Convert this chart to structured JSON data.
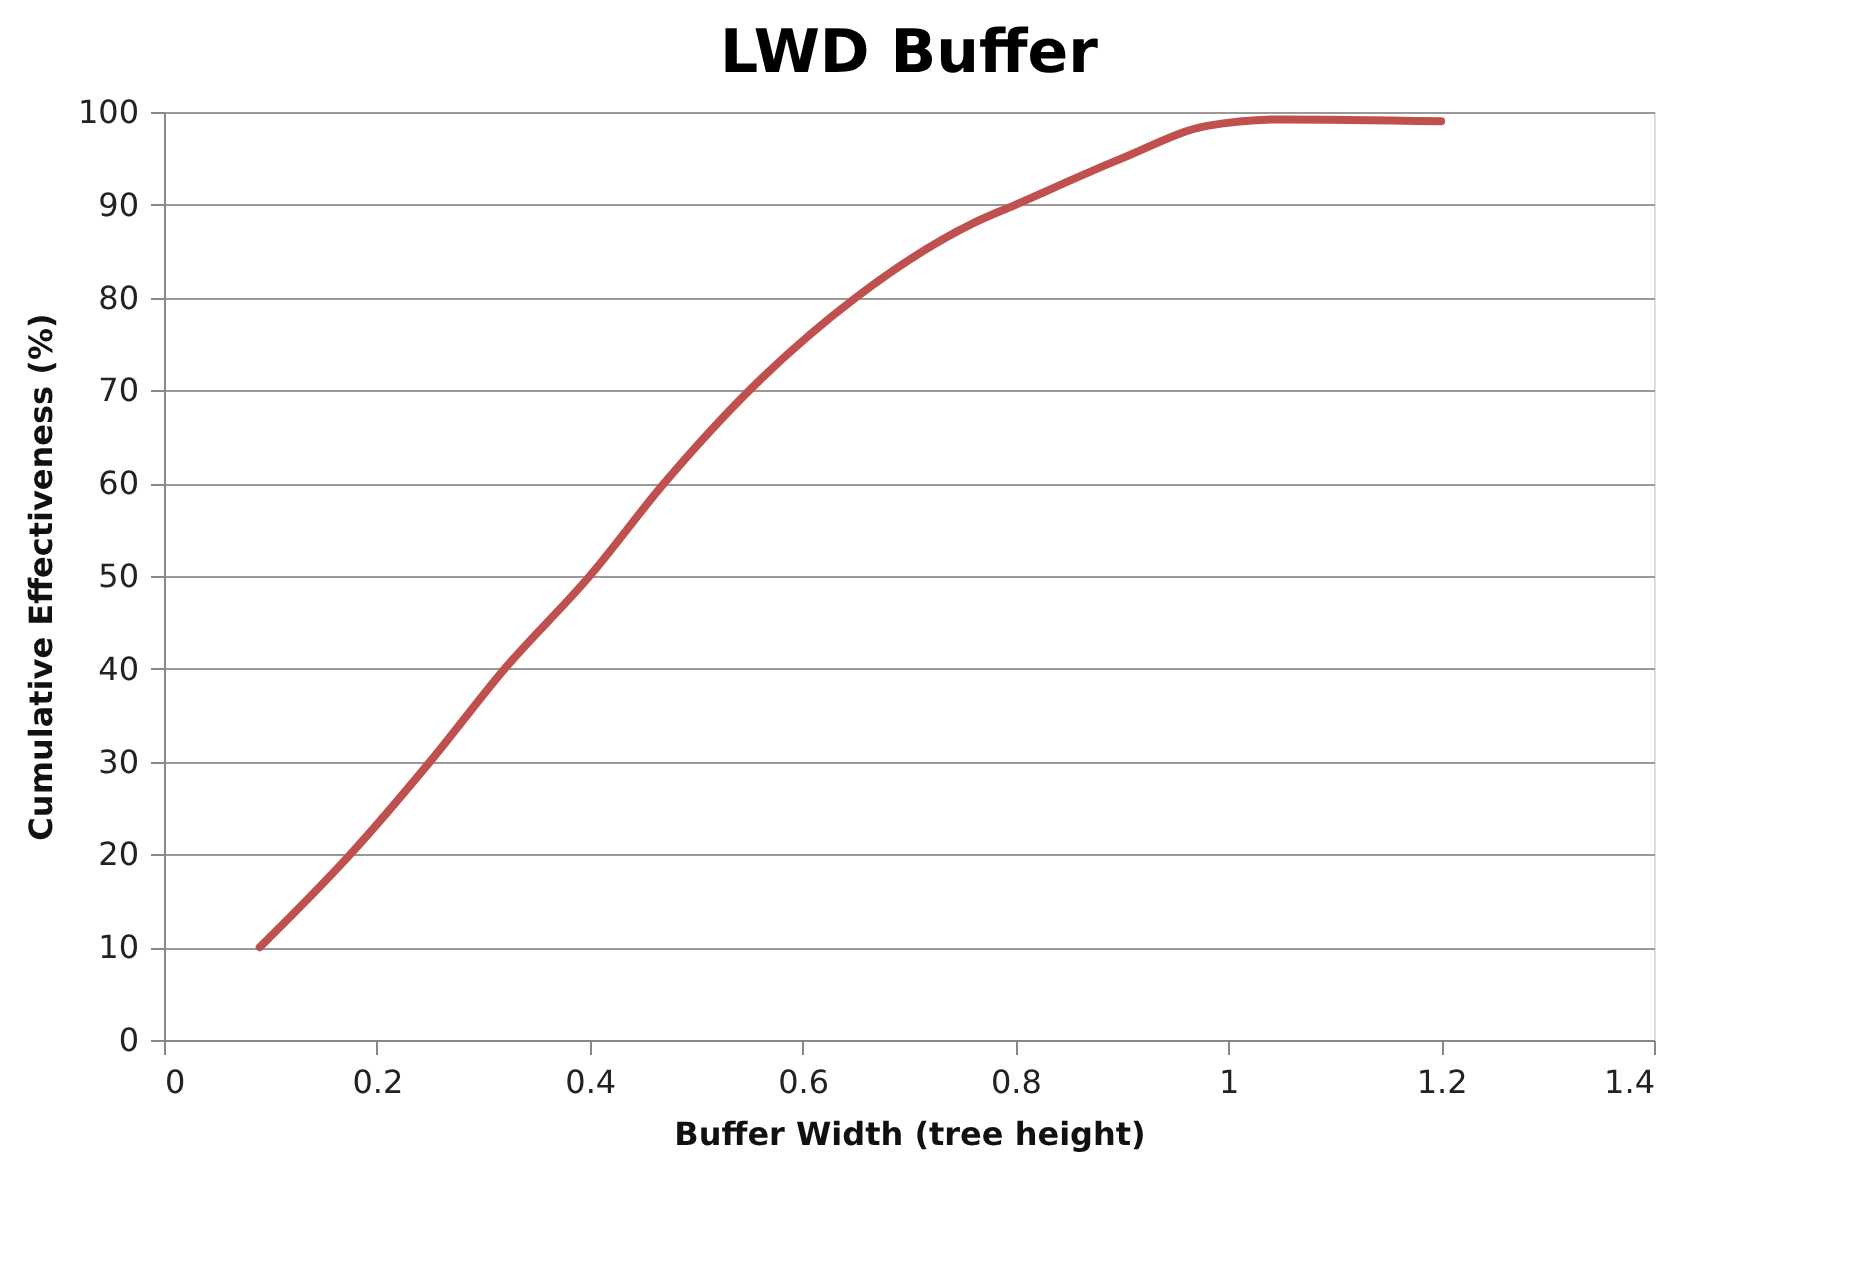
{
  "chart_data": {
    "type": "line",
    "title": "LWD Buffer",
    "xlabel": "Buffer Width (tree height)",
    "ylabel": "Cumulative Effectiveness (%)",
    "series": [
      {
        "color": "#c0504d",
        "x": [
          0.09,
          0.175,
          0.25,
          0.32,
          0.4,
          0.47,
          0.55,
          0.65,
          0.76,
          0.8,
          0.9,
          0.98,
          1.05,
          1.2
        ],
        "values": [
          10,
          20,
          30,
          40,
          50,
          60,
          70,
          80,
          88,
          90,
          95,
          98.5,
          99.2,
          99
        ]
      }
    ],
    "xlim": [
      0,
      1.4
    ],
    "xticks": [
      0,
      0.2,
      0.4,
      0.6,
      0.8,
      1,
      1.2,
      1.4
    ],
    "ylim": [
      0,
      100
    ],
    "yticks": [
      0,
      10,
      20,
      30,
      40,
      50,
      60,
      70,
      80,
      90,
      100
    ],
    "grid": "y",
    "marker": "none",
    "line_style": "solid"
  }
}
